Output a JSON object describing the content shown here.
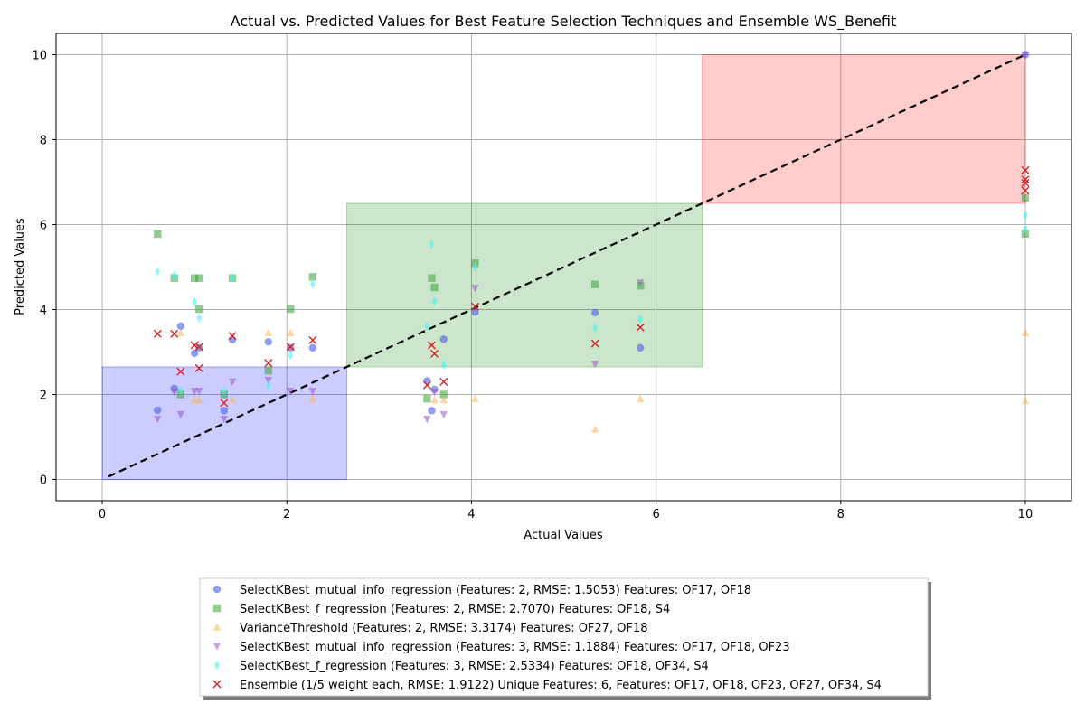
{
  "chart_data": {
    "type": "scatter",
    "title": "Actual vs. Predicted Values for Best Feature Selection Techniques and Ensemble WS_Benefit",
    "xlabel": "Actual Values",
    "ylabel": "Predicted Values",
    "xlim": [
      -0.5,
      10.5
    ],
    "ylim": [
      -0.5,
      10.5
    ],
    "xticks": [
      0,
      2,
      4,
      6,
      8,
      10
    ],
    "yticks": [
      0,
      2,
      4,
      6,
      8,
      10
    ],
    "grid": true,
    "legend_position": "bottom-center",
    "regions": [
      {
        "x": [
          0,
          2.65
        ],
        "y": [
          0,
          2.65
        ],
        "color": "#0000ff"
      },
      {
        "x": [
          2.65,
          6.5
        ],
        "y": [
          2.65,
          6.5
        ],
        "color": "#008000"
      },
      {
        "x": [
          6.5,
          10
        ],
        "y": [
          6.5,
          10
        ],
        "color": "#ff0000"
      }
    ],
    "reference_line": {
      "x": [
        0.07,
        10
      ],
      "y": [
        0.07,
        10
      ],
      "style": "dashed",
      "color": "#000000"
    },
    "series": [
      {
        "name": "SelectKBest_mutual_info_regression (Features: 2, RMSE: 1.5053) Features: OF17, OF18",
        "marker": "circle",
        "color": "#4b5ce6",
        "x": [
          0.6,
          0.78,
          0.85,
          1.0,
          1.05,
          1.32,
          1.41,
          1.8,
          2.04,
          2.28,
          3.52,
          3.57,
          3.6,
          3.7,
          4.04,
          5.34,
          5.83,
          10
        ],
        "y": [
          1.63,
          2.14,
          3.61,
          2.97,
          3.1,
          1.62,
          3.29,
          3.24,
          3.1,
          3.1,
          2.32,
          1.62,
          2.12,
          3.3,
          3.94,
          3.93,
          3.1,
          10
        ]
      },
      {
        "name": "SelectKBest_f_regression (Features: 2, RMSE: 2.7070) Features: OF18, S4",
        "marker": "square",
        "color": "#3aa23a",
        "x": [
          0.6,
          0.78,
          0.85,
          1.0,
          1.05,
          1.05,
          1.32,
          1.41,
          1.8,
          2.04,
          2.28,
          3.52,
          3.57,
          3.6,
          3.7,
          4.04,
          5.34,
          5.83,
          10,
          10
        ],
        "y": [
          5.78,
          4.74,
          2.0,
          4.74,
          4.74,
          4.01,
          2.0,
          4.74,
          2.56,
          4.01,
          4.77,
          1.9,
          4.74,
          4.52,
          2.0,
          5.09,
          4.59,
          4.56,
          5.78,
          6.63
        ]
      },
      {
        "name": "VarianceThreshold (Features: 2, RMSE: 3.3174) Features: OF27, OF18",
        "marker": "triangle-up",
        "color": "#f5b65a",
        "x": [
          0.85,
          1.0,
          1.05,
          1.41,
          1.8,
          2.04,
          2.28,
          3.6,
          3.7,
          4.04,
          5.34,
          5.83,
          10,
          10
        ],
        "y": [
          3.45,
          1.87,
          1.87,
          1.87,
          3.45,
          3.45,
          1.9,
          1.87,
          1.87,
          1.9,
          1.18,
          1.9,
          1.85,
          3.45
        ]
      },
      {
        "name": "SelectKBest_mutual_info_regression (Features: 3, RMSE: 1.1884) Features: OF17, OF18, OF23",
        "marker": "triangle-down",
        "color": "#9a56c6",
        "x": [
          0.6,
          0.78,
          0.85,
          1.0,
          1.05,
          1.32,
          1.41,
          1.8,
          2.04,
          2.28,
          3.52,
          3.6,
          3.7,
          4.04,
          5.34,
          5.83,
          10
        ],
        "y": [
          1.42,
          2.06,
          1.53,
          2.08,
          2.08,
          1.42,
          2.3,
          2.34,
          2.08,
          2.08,
          1.42,
          2.06,
          1.53,
          4.5,
          2.72,
          4.63,
          10
        ]
      },
      {
        "name": "SelectKBest_f_regression (Features: 3, RMSE: 2.5334) Features: OF18, OF34, S4",
        "marker": "thin-diamond",
        "color": "#3ff5f0",
        "x": [
          0.6,
          0.78,
          0.85,
          1.0,
          1.05,
          1.32,
          1.41,
          1.8,
          2.04,
          2.28,
          3.52,
          3.57,
          3.6,
          3.7,
          4.04,
          5.34,
          5.83,
          10,
          10
        ],
        "y": [
          4.9,
          4.8,
          2.1,
          4.18,
          3.8,
          2.1,
          4.75,
          2.2,
          2.92,
          4.6,
          3.6,
          5.54,
          4.2,
          2.7,
          5.0,
          3.57,
          3.77,
          5.9,
          6.22
        ]
      },
      {
        "name": "Ensemble (1/5 weight each, RMSE: 1.9122) Unique Features: 6, Features: OF17, OF18, OF23, OF27, OF34, S4",
        "marker": "x",
        "color": "#d62222",
        "x": [
          0.6,
          0.78,
          0.85,
          1.0,
          1.05,
          1.05,
          1.32,
          1.41,
          1.8,
          2.04,
          2.28,
          3.52,
          3.57,
          3.6,
          3.7,
          4.04,
          5.34,
          5.83,
          10,
          10,
          10,
          10
        ],
        "y": [
          3.43,
          3.43,
          2.54,
          3.16,
          3.12,
          2.62,
          1.8,
          3.38,
          2.74,
          3.12,
          3.28,
          2.22,
          3.16,
          2.96,
          2.3,
          4.07,
          3.2,
          3.58,
          6.8,
          6.98,
          7.06,
          7.28
        ]
      }
    ]
  }
}
